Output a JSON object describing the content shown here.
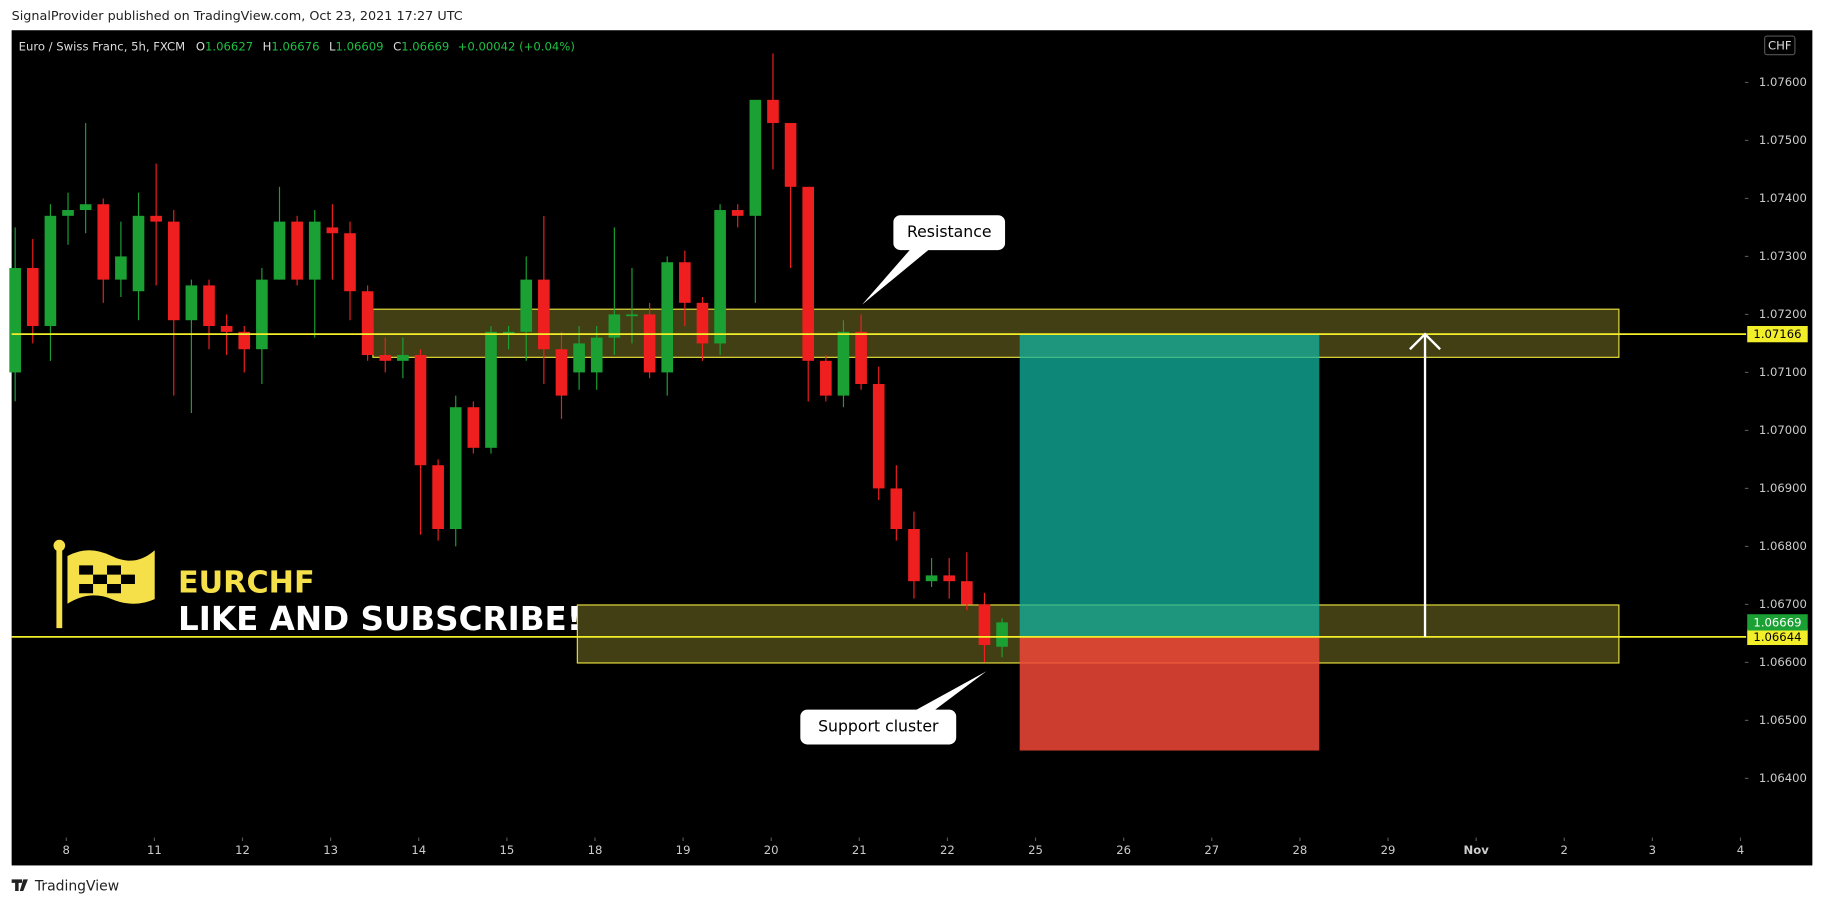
{
  "header": "SignalProvider published on TradingView.com, Oct 23, 2021 17:27 UTC",
  "footer": "TradingView",
  "chart_data": {
    "type": "candlestick",
    "title": "Euro / Swiss Franc, 5h, FXCM",
    "ohlc_letters": [
      "O",
      "H",
      "L",
      "C"
    ],
    "change": "+0.00042 (+0.04%)",
    "currency": "CHF",
    "up_color": "#1ba133",
    "down_color": "#ef1f1f",
    "open": [
      1.071,
      1.0728,
      1.0718,
      1.0737,
      1.0738,
      1.0739,
      1.0726,
      1.0724,
      1.0737,
      1.0736,
      1.0719,
      1.0725,
      1.0718,
      1.0717,
      1.0714,
      1.0726,
      1.0736,
      1.0726,
      1.0735,
      1.0734,
      1.0724,
      1.0713,
      1.0712,
      1.0713,
      1.0694,
      1.0683,
      1.0704,
      1.0697,
      1.0717,
      1.0717,
      1.0726,
      1.0714,
      1.071,
      1.071,
      1.0716,
      1.072,
      1.072,
      1.071,
      1.0729,
      1.0722,
      1.0715,
      1.0738,
      1.0737,
      1.0757,
      1.0753,
      1.0742,
      1.0712,
      1.0706,
      1.0717,
      1.0708,
      1.069,
      1.0683,
      1.0674,
      1.0675,
      1.0674,
      1.067,
      1.06627
    ],
    "high": [
      1.0735,
      1.0733,
      1.0739,
      1.0741,
      1.0753,
      1.074,
      1.0736,
      1.0741,
      1.0746,
      1.0738,
      1.0726,
      1.0726,
      1.072,
      1.0718,
      1.0728,
      1.0742,
      1.0737,
      1.0738,
      1.0739,
      1.0736,
      1.0725,
      1.0716,
      1.0716,
      1.0714,
      1.0695,
      1.0706,
      1.0705,
      1.0718,
      1.0718,
      1.073,
      1.0737,
      1.0717,
      1.0718,
      1.0718,
      1.0735,
      1.0728,
      1.0722,
      1.073,
      1.0731,
      1.0723,
      1.0739,
      1.0739,
      1.0757,
      1.0765,
      1.0753,
      1.0742,
      1.0713,
      1.0719,
      1.072,
      1.0711,
      1.0694,
      1.0686,
      1.0678,
      1.0678,
      1.0679,
      1.0672,
      1.06676
    ],
    "low": [
      1.0705,
      1.0715,
      1.0712,
      1.0732,
      1.0734,
      1.0722,
      1.0723,
      1.0719,
      1.0725,
      1.0706,
      1.0703,
      1.0714,
      1.0713,
      1.071,
      1.0708,
      1.0726,
      1.0725,
      1.0716,
      1.0726,
      1.0719,
      1.0712,
      1.071,
      1.0709,
      1.0682,
      1.0681,
      1.068,
      1.0696,
      1.0696,
      1.0714,
      1.0712,
      1.0708,
      1.0702,
      1.0707,
      1.0707,
      1.0713,
      1.0715,
      1.0709,
      1.0706,
      1.0718,
      1.0712,
      1.0713,
      1.0735,
      1.0722,
      1.0745,
      1.0728,
      1.0705,
      1.0705,
      1.0704,
      1.0707,
      1.0688,
      1.0681,
      1.0671,
      1.0673,
      1.0671,
      1.0669,
      1.066,
      1.06609
    ],
    "close": [
      1.0728,
      1.0718,
      1.0737,
      1.0738,
      1.0739,
      1.0726,
      1.073,
      1.0737,
      1.0736,
      1.0719,
      1.0725,
      1.0718,
      1.0717,
      1.0714,
      1.0726,
      1.0736,
      1.0726,
      1.0736,
      1.0734,
      1.0724,
      1.0713,
      1.0712,
      1.0713,
      1.0694,
      1.0683,
      1.0704,
      1.0697,
      1.0717,
      1.0717,
      1.0726,
      1.0714,
      1.0706,
      1.0715,
      1.0716,
      1.072,
      1.072,
      1.071,
      1.0729,
      1.0722,
      1.0715,
      1.0738,
      1.0737,
      1.0757,
      1.0753,
      1.0742,
      1.0712,
      1.0706,
      1.0717,
      1.0708,
      1.069,
      1.0683,
      1.0674,
      1.0675,
      1.0674,
      1.067,
      1.0663,
      1.06669
    ],
    "xlim": [
      -0.2,
      98.15
    ],
    "ylim": [
      1.06298,
      1.0769
    ],
    "xticks": [
      {
        "value": 2.9,
        "label": "8"
      },
      {
        "value": 7.9,
        "label": "11"
      },
      {
        "value": 12.9,
        "label": "12"
      },
      {
        "value": 17.9,
        "label": "13"
      },
      {
        "value": 22.9,
        "label": "14"
      },
      {
        "value": 27.9,
        "label": "15"
      },
      {
        "value": 32.9,
        "label": "18"
      },
      {
        "value": 37.9,
        "label": "19"
      },
      {
        "value": 42.9,
        "label": "20"
      },
      {
        "value": 47.9,
        "label": "21"
      },
      {
        "value": 52.9,
        "label": "22"
      },
      {
        "value": 57.9,
        "label": "25"
      },
      {
        "value": 62.9,
        "label": "26"
      },
      {
        "value": 67.9,
        "label": "27"
      },
      {
        "value": 72.9,
        "label": "28"
      },
      {
        "value": 77.9,
        "label": "29"
      },
      {
        "value": 82.9,
        "label": "Nov"
      },
      {
        "value": 87.9,
        "label": "2"
      },
      {
        "value": 92.9,
        "label": "3"
      },
      {
        "value": 97.9,
        "label": "4"
      }
    ],
    "yticks": [
      {
        "value": 1.076,
        "label": "1.07600"
      },
      {
        "value": 1.075,
        "label": "1.07500"
      },
      {
        "value": 1.074,
        "label": "1.07400"
      },
      {
        "value": 1.073,
        "label": "1.07300"
      },
      {
        "value": 1.072,
        "label": "1.07200"
      },
      {
        "value": 1.071,
        "label": "1.07100"
      },
      {
        "value": 1.07,
        "label": "1.07000"
      },
      {
        "value": 1.069,
        "label": "1.06900"
      },
      {
        "value": 1.068,
        "label": "1.06800"
      },
      {
        "value": 1.067,
        "label": "1.06700"
      },
      {
        "value": 1.066,
        "label": "1.06600"
      },
      {
        "value": 1.065,
        "label": "1.06500"
      },
      {
        "value": 1.064,
        "label": "1.06400"
      }
    ],
    "hlines": [
      {
        "value": 1.07166,
        "label": "1.07166",
        "color": "#f2ee2a"
      },
      {
        "value": 1.06644,
        "label": "1.06644",
        "color": "#f2ee2a"
      }
    ],
    "zones": [
      {
        "y": [
          1.07126,
          1.07209
        ],
        "x": [
          20.3,
          91.0
        ]
      },
      {
        "y": [
          1.06599,
          1.06699
        ],
        "x": [
          31.9,
          91.0
        ]
      }
    ],
    "position": {
      "target": 1.07166,
      "entry": 1.06644,
      "stop": 1.06448,
      "x": [
        57.0,
        74.0
      ]
    },
    "arrow": {
      "x": 80.0,
      "y": [
        1.06644,
        1.07166
      ]
    },
    "annotations": [
      "Resistance",
      "Support cluster"
    ],
    "watermark": {
      "symbol": "EURCHF",
      "text": "LIKE AND SUBSCRIBE!"
    }
  }
}
